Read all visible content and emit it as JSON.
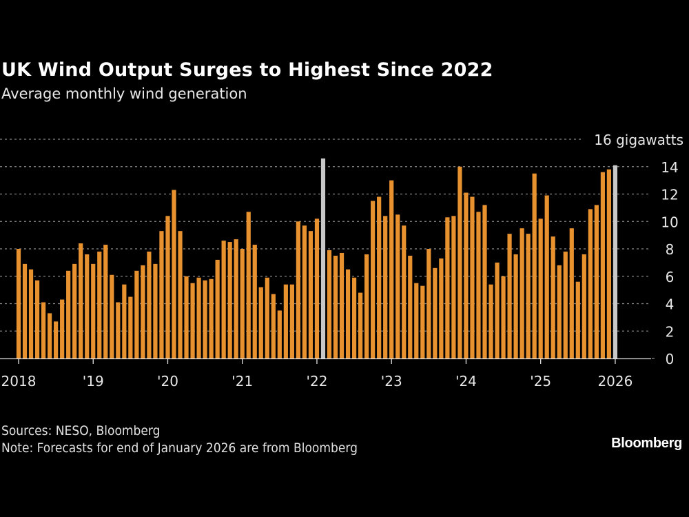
{
  "title": "UK Wind Output Surges to Highest Since 2022",
  "subtitle": "Average monthly wind generation",
  "footer": {
    "sources": "Sources: NESO, Bloomberg",
    "note": "Note: Forecasts for end of January 2026 are from Bloomberg",
    "logo": "Bloomberg"
  },
  "chart_data": {
    "type": "bar",
    "title": "UK Wind Output Surges to Highest Since 2022",
    "subtitle": "Average monthly wind generation",
    "ylabel": "16 gigawatts",
    "ylim": [
      0,
      16
    ],
    "yticks": [
      0,
      2,
      4,
      6,
      8,
      10,
      12,
      14,
      16
    ],
    "grid": true,
    "start_month": "2018-01",
    "xticks": [
      {
        "month": "2018-01",
        "label": "2018"
      },
      {
        "month": "2019-01",
        "label": "'19"
      },
      {
        "month": "2020-01",
        "label": "'20"
      },
      {
        "month": "2021-01",
        "label": "'21"
      },
      {
        "month": "2022-01",
        "label": "'22"
      },
      {
        "month": "2023-01",
        "label": "'23"
      },
      {
        "month": "2024-01",
        "label": "'24"
      },
      {
        "month": "2025-01",
        "label": "'25"
      },
      {
        "month": "2026-01",
        "label": "2026"
      }
    ],
    "values": [
      8.0,
      6.9,
      6.5,
      5.7,
      4.1,
      3.3,
      2.7,
      4.3,
      6.4,
      6.9,
      8.4,
      7.6,
      6.9,
      7.8,
      8.3,
      6.1,
      4.1,
      5.4,
      4.5,
      6.4,
      6.8,
      7.8,
      6.9,
      9.3,
      10.4,
      12.3,
      9.3,
      6.0,
      5.5,
      5.9,
      5.7,
      5.8,
      7.2,
      8.6,
      8.5,
      8.7,
      8.0,
      10.7,
      8.3,
      5.2,
      5.9,
      4.7,
      3.5,
      5.4,
      5.4,
      10.0,
      9.7,
      9.3,
      10.2,
      14.6,
      7.9,
      7.5,
      7.7,
      6.5,
      5.9,
      4.8,
      7.6,
      11.5,
      11.8,
      10.4,
      13.0,
      10.5,
      9.7,
      7.5,
      5.5,
      5.3,
      8.0,
      6.6,
      7.3,
      10.3,
      10.4,
      14.0,
      12.1,
      11.8,
      10.7,
      11.2,
      5.4,
      7.0,
      6.0,
      9.1,
      7.6,
      9.5,
      9.1,
      13.5,
      10.2,
      11.9,
      8.9,
      6.8,
      7.8,
      9.5,
      5.6,
      7.6,
      10.9,
      11.2,
      13.6,
      13.8,
      14.1
    ],
    "highlighted_months": [
      "2022-02",
      "2026-01"
    ],
    "colors": {
      "bar": "#E8912F",
      "highlight": "#C8C8C8",
      "background": "#000000",
      "grid": "#8a8a8a"
    }
  }
}
